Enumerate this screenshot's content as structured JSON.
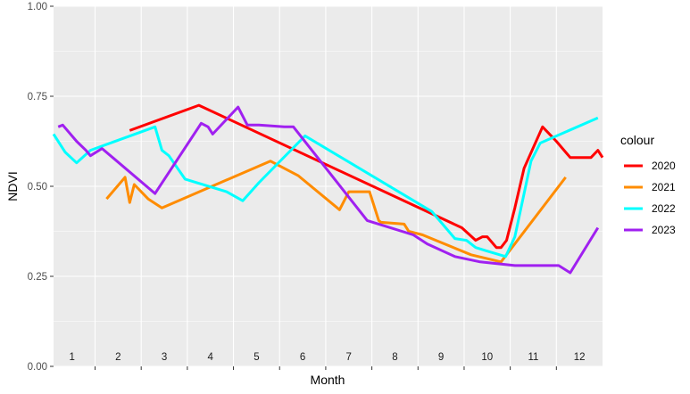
{
  "chart_data": {
    "type": "line",
    "xlabel": "Month",
    "ylabel": "NDVI",
    "ylim": [
      0,
      1
    ],
    "xlim": [
      0.6,
      12.5
    ],
    "y_ticks": [
      "0.00",
      "0.25",
      "0.50",
      "0.75",
      "1.00"
    ],
    "y_tick_values": [
      0,
      0.25,
      0.5,
      0.75,
      1.0
    ],
    "month_labels": [
      "1",
      "2",
      "3",
      "4",
      "5",
      "6",
      "7",
      "8",
      "9",
      "10",
      "11",
      "12"
    ],
    "legend_title": "colour",
    "legend_position": "right",
    "grid": true,
    "series": [
      {
        "name": "2020",
        "color": "#ff0000",
        "x": [
          2.25,
          3.75,
          9.45,
          9.75,
          9.9,
          10.0,
          10.2,
          10.25,
          10.3,
          10.42,
          10.6,
          10.8,
          11.2,
          11.5,
          11.8,
          12.1,
          12.25,
          12.4,
          12.5
        ],
        "y": [
          0.655,
          0.725,
          0.385,
          0.35,
          0.36,
          0.36,
          0.33,
          0.33,
          0.33,
          0.35,
          0.44,
          0.55,
          0.665,
          0.625,
          0.58,
          0.58,
          0.58,
          0.6,
          0.58
        ]
      },
      {
        "name": "2021",
        "color": "#ff8c00",
        "x": [
          1.75,
          2.15,
          2.25,
          2.35,
          2.65,
          2.95,
          5.3,
          5.9,
          6.8,
          7.0,
          7.25,
          7.35,
          7.45,
          7.65,
          7.7,
          8.2,
          8.3,
          8.6,
          9.65,
          10.3,
          11.7
        ],
        "y": [
          0.465,
          0.525,
          0.455,
          0.505,
          0.465,
          0.44,
          0.57,
          0.53,
          0.435,
          0.485,
          0.485,
          0.485,
          0.485,
          0.405,
          0.4,
          0.395,
          0.375,
          0.365,
          0.31,
          0.29,
          0.525
        ]
      },
      {
        "name": "2022",
        "color": "#00ffff",
        "x": [
          0.6,
          0.85,
          1.1,
          1.4,
          2.8,
          2.95,
          3.1,
          3.45,
          4.35,
          4.7,
          5.05,
          6.05,
          8.8,
          9.3,
          9.55,
          9.75,
          10.0,
          10.4,
          10.6,
          10.95,
          11.15,
          12.4
        ],
        "y": [
          0.645,
          0.595,
          0.565,
          0.6,
          0.665,
          0.6,
          0.585,
          0.52,
          0.485,
          0.46,
          0.51,
          0.64,
          0.43,
          0.355,
          0.35,
          0.33,
          0.32,
          0.305,
          0.36,
          0.57,
          0.62,
          0.69
        ]
      },
      {
        "name": "2023",
        "color": "#a020f0",
        "x": [
          0.7,
          0.8,
          1.1,
          1.3,
          1.4,
          1.65,
          2.8,
          3.8,
          3.95,
          4.05,
          4.6,
          4.8,
          5.05,
          5.6,
          5.8,
          7.4,
          8.4,
          8.7,
          9.3,
          9.85,
          10.6,
          10.95,
          11.35,
          11.45,
          11.55,
          11.8,
          12.4
        ],
        "y": [
          0.665,
          0.67,
          0.625,
          0.6,
          0.585,
          0.605,
          0.48,
          0.675,
          0.665,
          0.645,
          0.72,
          0.67,
          0.67,
          0.665,
          0.665,
          0.405,
          0.365,
          0.34,
          0.305,
          0.29,
          0.28,
          0.28,
          0.28,
          0.28,
          0.28,
          0.26,
          0.385
        ]
      }
    ]
  }
}
